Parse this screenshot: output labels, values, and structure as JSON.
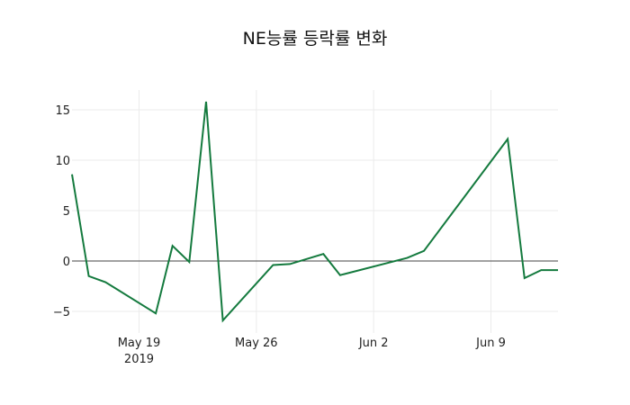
{
  "chart_data": {
    "type": "line",
    "title": "NE능률 등락률 변화",
    "xlabel": "",
    "ylabel": "",
    "x": [
      "2019-05-15",
      "2019-05-16",
      "2019-05-17",
      "2019-05-20",
      "2019-05-21",
      "2019-05-22",
      "2019-05-23",
      "2019-05-24",
      "2019-05-27",
      "2019-05-28",
      "2019-05-30",
      "2019-05-31",
      "2019-06-04",
      "2019-06-05",
      "2019-06-10",
      "2019-06-11",
      "2019-06-12",
      "2019-06-13"
    ],
    "series": [
      {
        "name": "등락률",
        "color": "#147a3e",
        "values": [
          8.6,
          -1.5,
          -2.1,
          -5.2,
          1.5,
          -0.1,
          15.8,
          -5.9,
          -0.4,
          -0.3,
          0.7,
          -1.4,
          0.3,
          1.0,
          12.1,
          -1.7,
          -0.9,
          -0.9
        ]
      }
    ],
    "x_ticks": [
      {
        "label": "May 19",
        "sublabel": "2019",
        "date": "2019-05-19"
      },
      {
        "label": "May 26",
        "sublabel": "",
        "date": "2019-05-26"
      },
      {
        "label": "Jun 2",
        "sublabel": "",
        "date": "2019-06-02"
      },
      {
        "label": "Jun 9",
        "sublabel": "",
        "date": "2019-06-09"
      }
    ],
    "y_ticks": [
      15,
      10,
      5,
      0,
      -5
    ],
    "ylim": [
      -7,
      17
    ],
    "xlim": [
      "2019-05-15",
      "2019-06-13"
    ],
    "grid": true,
    "legend": "none",
    "zero_line": true
  }
}
